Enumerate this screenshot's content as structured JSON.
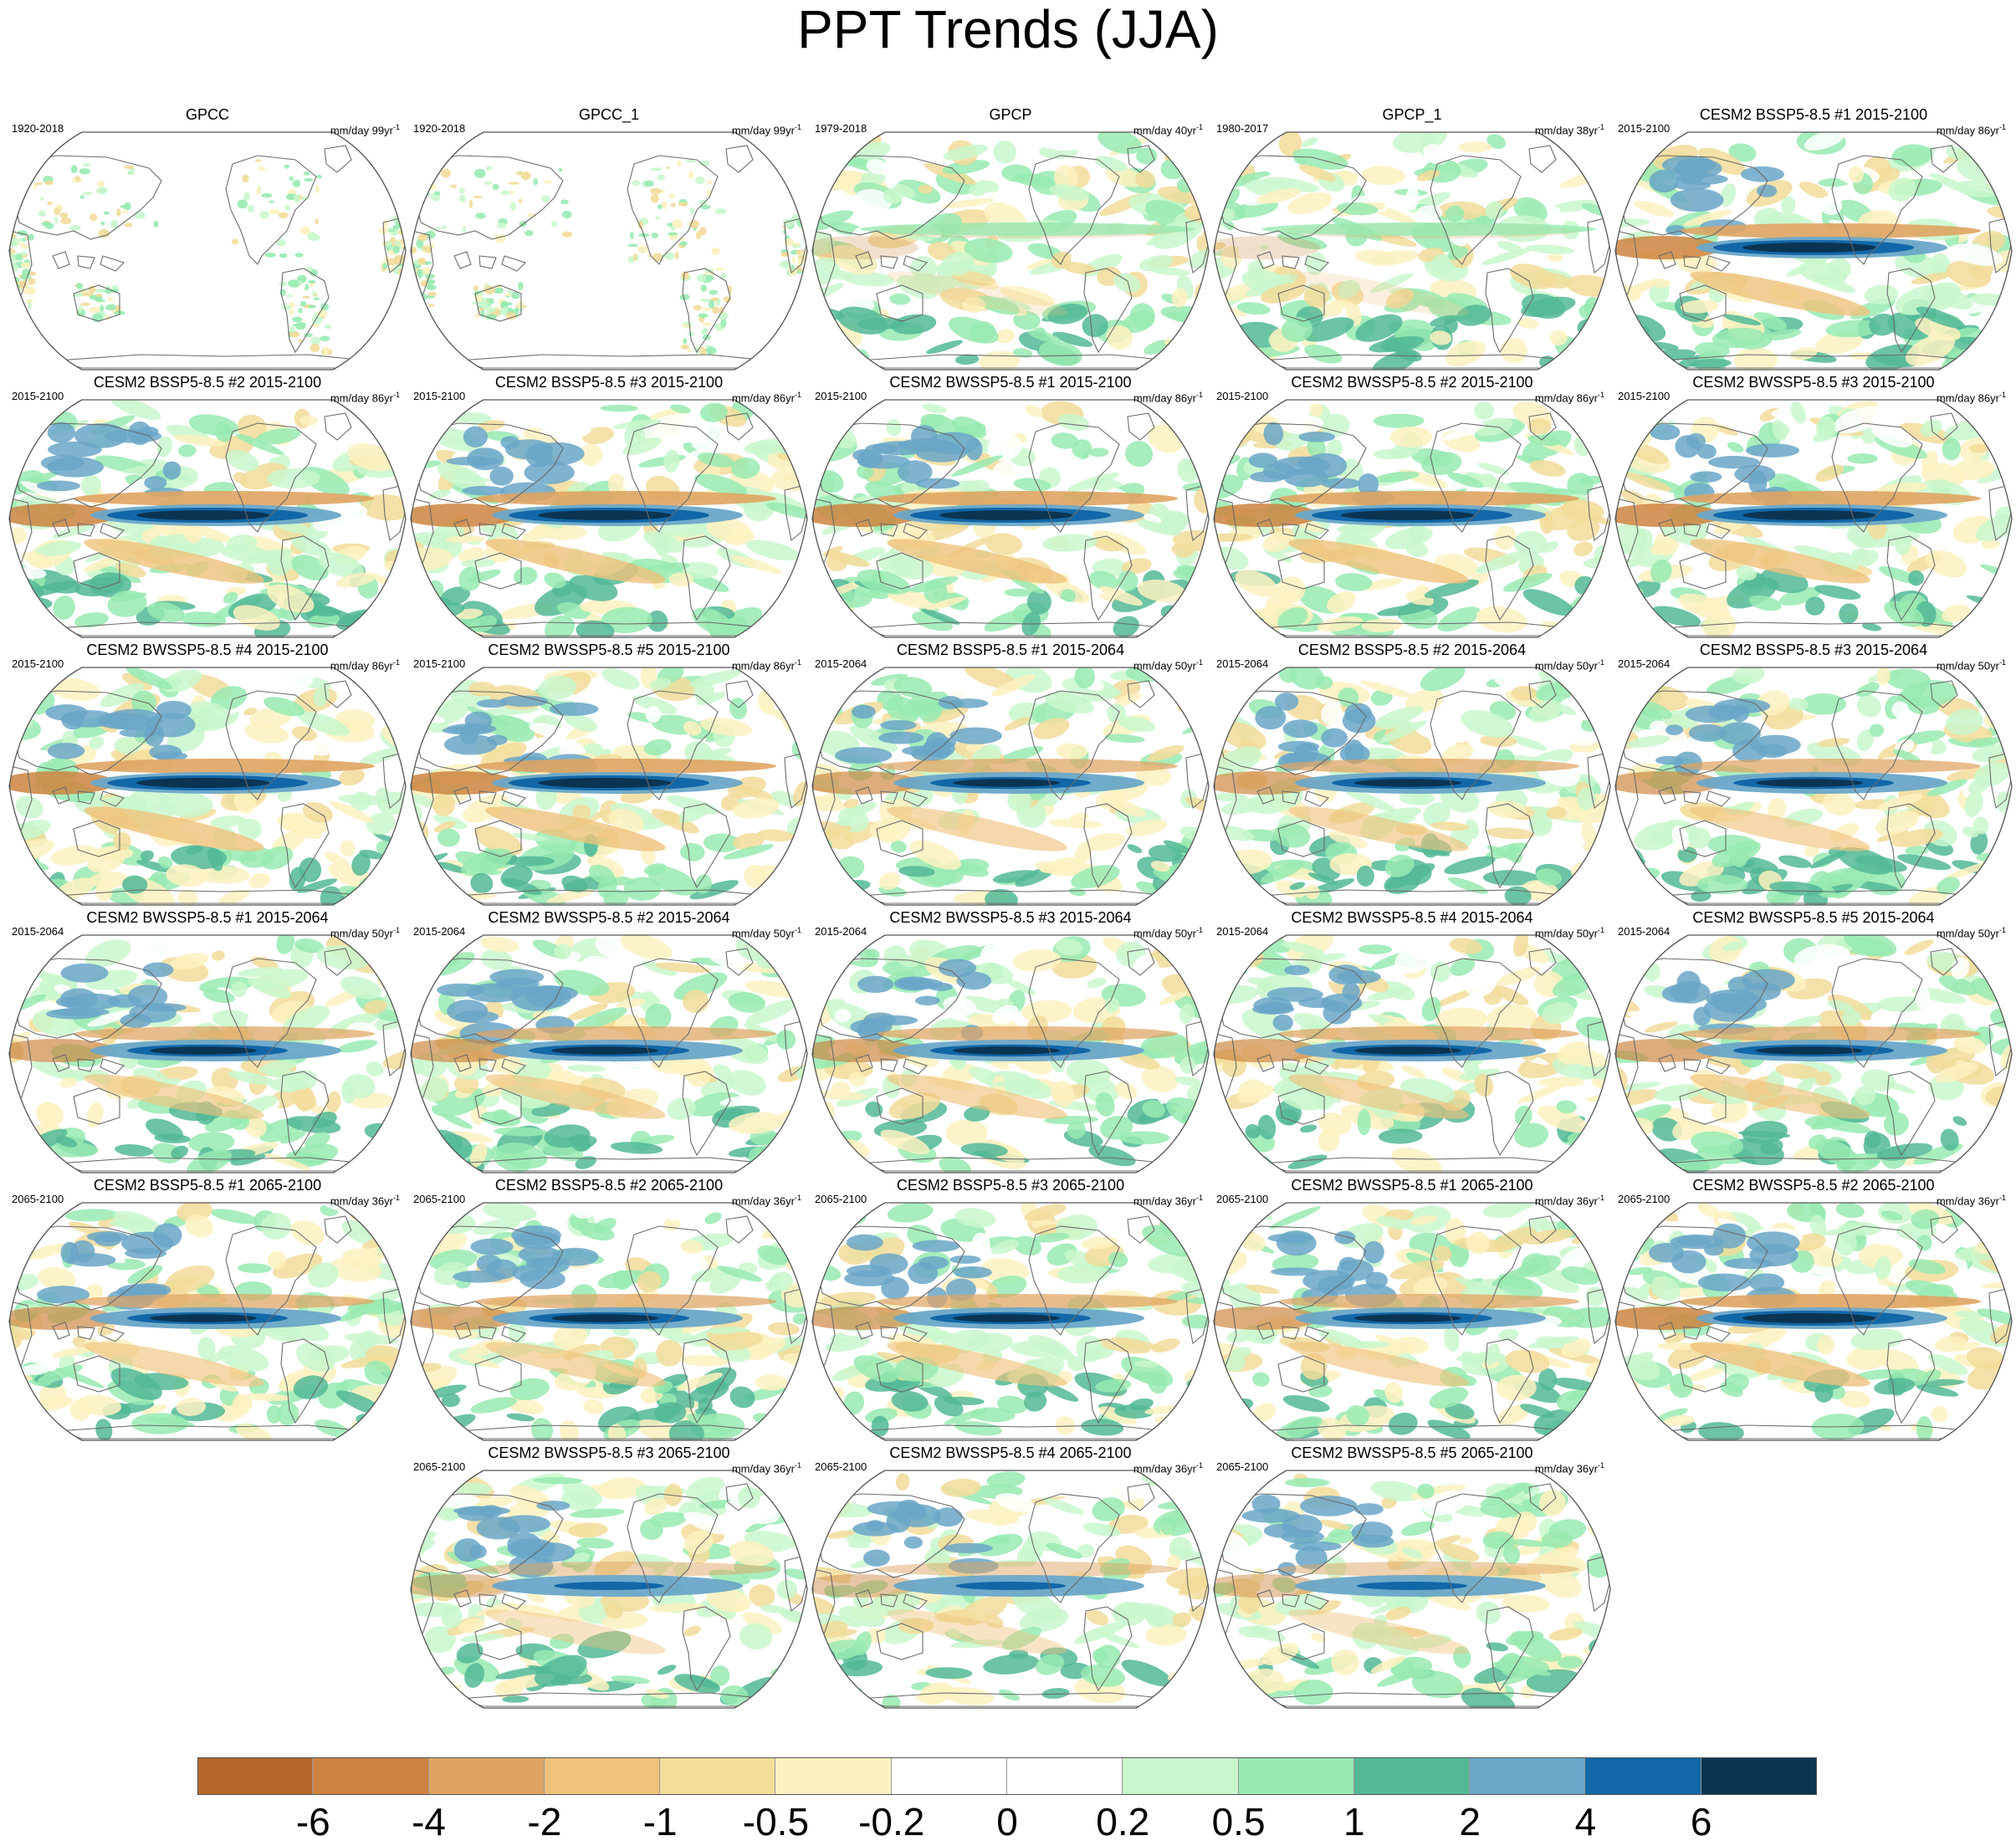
{
  "title": "PPT Trends (JJA)",
  "panels": [
    {
      "title": "GPCC",
      "period": "1920-2018",
      "units": "mm/day 99yr",
      "units_exp": "-1",
      "pattern": "obs_land"
    },
    {
      "title": "GPCC_1",
      "period": "1920-2018",
      "units": "mm/day 99yr",
      "units_exp": "-1",
      "pattern": "obs_land"
    },
    {
      "title": "GPCP",
      "period": "1979-2018",
      "units": "mm/day 40yr",
      "units_exp": "-1",
      "pattern": "obs_global"
    },
    {
      "title": "GPCP_1",
      "period": "1980-2017",
      "units": "mm/day 38yr",
      "units_exp": "-1",
      "pattern": "obs_global"
    },
    {
      "title": "CESM2 BSSP5-8.5 #1 2015-2100",
      "period": "2015-2100",
      "units": "mm/day 86yr",
      "units_exp": "-1",
      "pattern": "model_strong"
    },
    {
      "title": "CESM2 BSSP5-8.5 #2 2015-2100",
      "period": "2015-2100",
      "units": "mm/day 86yr",
      "units_exp": "-1",
      "pattern": "model_strong"
    },
    {
      "title": "CESM2 BSSP5-8.5 #3 2015-2100",
      "period": "2015-2100",
      "units": "mm/day 86yr",
      "units_exp": "-1",
      "pattern": "model_strong"
    },
    {
      "title": "CESM2 BWSSP5-8.5 #1 2015-2100",
      "period": "2015-2100",
      "units": "mm/day 86yr",
      "units_exp": "-1",
      "pattern": "model_strong"
    },
    {
      "title": "CESM2 BWSSP5-8.5 #2 2015-2100",
      "period": "2015-2100",
      "units": "mm/day 86yr",
      "units_exp": "-1",
      "pattern": "model_strong"
    },
    {
      "title": "CESM2 BWSSP5-8.5 #3 2015-2100",
      "period": "2015-2100",
      "units": "mm/day 86yr",
      "units_exp": "-1",
      "pattern": "model_strong"
    },
    {
      "title": "CESM2 BWSSP5-8.5 #4 2015-2100",
      "period": "2015-2100",
      "units": "mm/day 86yr",
      "units_exp": "-1",
      "pattern": "model_strong"
    },
    {
      "title": "CESM2 BWSSP5-8.5 #5 2015-2100",
      "period": "2015-2100",
      "units": "mm/day 86yr",
      "units_exp": "-1",
      "pattern": "model_strong"
    },
    {
      "title": "CESM2 BSSP5-8.5 #1 2015-2064",
      "period": "2015-2064",
      "units": "mm/day 50yr",
      "units_exp": "-1",
      "pattern": "model_mid"
    },
    {
      "title": "CESM2 BSSP5-8.5 #2 2015-2064",
      "period": "2015-2064",
      "units": "mm/day 50yr",
      "units_exp": "-1",
      "pattern": "model_mid"
    },
    {
      "title": "CESM2 BSSP5-8.5 #3 2015-2064",
      "period": "2015-2064",
      "units": "mm/day 50yr",
      "units_exp": "-1",
      "pattern": "model_mid"
    },
    {
      "title": "CESM2 BWSSP5-8.5 #1 2015-2064",
      "period": "2015-2064",
      "units": "mm/day 50yr",
      "units_exp": "-1",
      "pattern": "model_mid"
    },
    {
      "title": "CESM2 BWSSP5-8.5 #2 2015-2064",
      "period": "2015-2064",
      "units": "mm/day 50yr",
      "units_exp": "-1",
      "pattern": "model_mid"
    },
    {
      "title": "CESM2 BWSSP5-8.5 #3 2015-2064",
      "period": "2015-2064",
      "units": "mm/day 50yr",
      "units_exp": "-1",
      "pattern": "model_mid"
    },
    {
      "title": "CESM2 BWSSP5-8.5 #4 2015-2064",
      "period": "2015-2064",
      "units": "mm/day 50yr",
      "units_exp": "-1",
      "pattern": "model_mid"
    },
    {
      "title": "CESM2 BWSSP5-8.5 #5 2015-2064",
      "period": "2015-2064",
      "units": "mm/day 50yr",
      "units_exp": "-1",
      "pattern": "model_mid"
    },
    {
      "title": "CESM2 BSSP5-8.5 #1 2065-2100",
      "period": "2065-2100",
      "units": "mm/day 36yr",
      "units_exp": "-1",
      "pattern": "model_mid"
    },
    {
      "title": "CESM2 BSSP5-8.5 #2 2065-2100",
      "period": "2065-2100",
      "units": "mm/day 36yr",
      "units_exp": "-1",
      "pattern": "model_mid"
    },
    {
      "title": "CESM2 BSSP5-8.5 #3 2065-2100",
      "period": "2065-2100",
      "units": "mm/day 36yr",
      "units_exp": "-1",
      "pattern": "model_mid"
    },
    {
      "title": "CESM2 BWSSP5-8.5 #1 2065-2100",
      "period": "2065-2100",
      "units": "mm/day 36yr",
      "units_exp": "-1",
      "pattern": "model_mid"
    },
    {
      "title": "CESM2 BWSSP5-8.5 #2 2065-2100",
      "period": "2065-2100",
      "units": "mm/day 36yr",
      "units_exp": "-1",
      "pattern": "model_strong"
    },
    {
      "title": "CESM2 BWSSP5-8.5 #3 2065-2100",
      "period": "2065-2100",
      "units": "mm/day 36yr",
      "units_exp": "-1",
      "pattern": "model_weak"
    },
    {
      "title": "CESM2 BWSSP5-8.5 #4 2065-2100",
      "period": "2065-2100",
      "units": "mm/day 36yr",
      "units_exp": "-1",
      "pattern": "model_weak"
    },
    {
      "title": "CESM2 BWSSP5-8.5 #5 2065-2100",
      "period": "2065-2100",
      "units": "mm/day 36yr",
      "units_exp": "-1",
      "pattern": "model_weak"
    }
  ],
  "colorbar": {
    "labels": [
      "-6",
      "-4",
      "-2",
      "-1",
      "-0.5",
      "-0.2",
      "0",
      "0.2",
      "0.5",
      "1",
      "2",
      "4",
      "6"
    ],
    "colors": [
      "#b4662a",
      "#cc8440",
      "#dfa462",
      "#efc27c",
      "#f2dc9a",
      "#fdf1bf",
      "#ffffff",
      "#ffffff",
      "#c9f7cd",
      "#98eab2",
      "#52b897",
      "#6aa6c8",
      "#1167a8",
      "#0b3452"
    ]
  },
  "colors": {
    "ocean_background": "#ffffff",
    "coastline": "#6b6b6b"
  }
}
